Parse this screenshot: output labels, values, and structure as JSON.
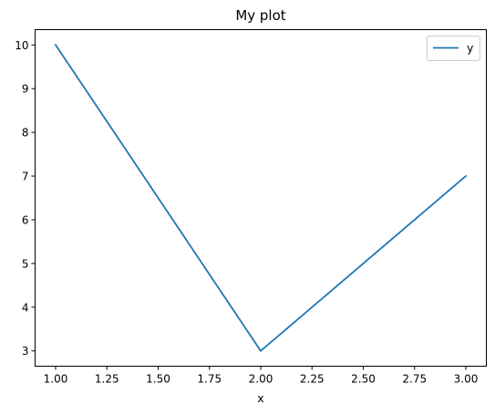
{
  "chart_data": {
    "type": "line",
    "title": "My plot",
    "xlabel": "x",
    "ylabel": "",
    "x": [
      1.0,
      2.0,
      3.0
    ],
    "series": [
      {
        "name": "y",
        "values": [
          10,
          3,
          7
        ],
        "color": "#1f77b4"
      }
    ],
    "xlim": [
      0.9,
      3.1
    ],
    "ylim": [
      2.65,
      10.35
    ],
    "xticks": [
      1.0,
      1.25,
      1.5,
      1.75,
      2.0,
      2.25,
      2.5,
      2.75,
      3.0
    ],
    "xtick_labels": [
      "1.00",
      "1.25",
      "1.50",
      "1.75",
      "2.00",
      "2.25",
      "2.50",
      "2.75",
      "3.00"
    ],
    "yticks": [
      3,
      4,
      5,
      6,
      7,
      8,
      9,
      10
    ],
    "ytick_labels": [
      "3",
      "4",
      "5",
      "6",
      "7",
      "8",
      "9",
      "10"
    ],
    "grid": false,
    "legend_position": "top-right"
  }
}
